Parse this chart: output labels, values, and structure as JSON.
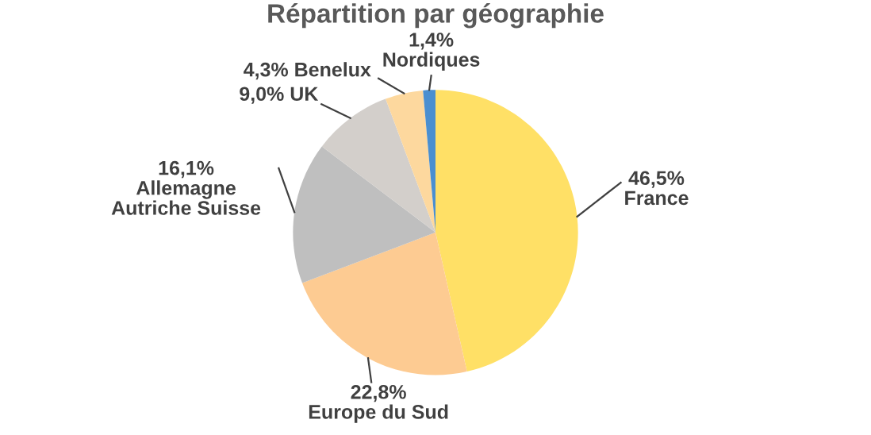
{
  "chart_data": {
    "type": "pie",
    "title": "Répartition par géographie",
    "categories": [
      "France",
      "Europe du Sud",
      "Allemagne Autriche Suisse",
      "UK",
      "Benelux",
      "Nordiques"
    ],
    "values": [
      46.5,
      22.8,
      16.1,
      9.0,
      4.3,
      1.4
    ],
    "value_labels": [
      "46,5%",
      "22,8%",
      "16,1%",
      "9,0%",
      "4,3%",
      "1,4%"
    ],
    "colors": [
      "#ffe066",
      "#fdcb92",
      "#bfbfbf",
      "#d3cfcb",
      "#fdd89e",
      "#4a8fd0"
    ]
  }
}
